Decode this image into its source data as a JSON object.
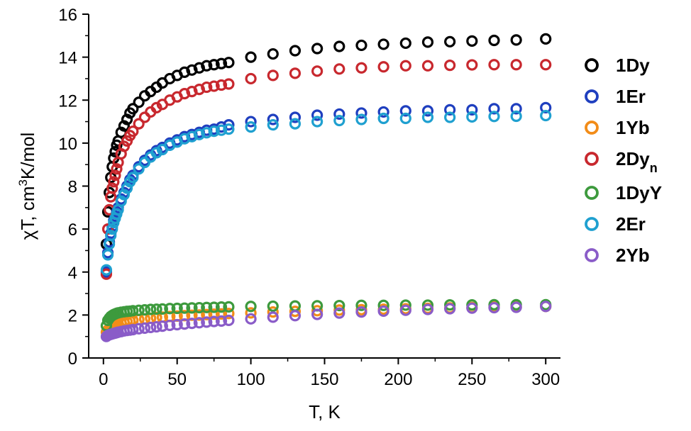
{
  "chart_data": {
    "type": "scatter",
    "xlabel": "T, K",
    "ylabel_parts": {
      "main": "χT, cm",
      "sup": "3",
      "rest": "K/mol"
    },
    "xlim": [
      -10,
      310
    ],
    "ylim": [
      0,
      16
    ],
    "x_ticks": [
      0,
      50,
      100,
      150,
      200,
      250,
      300
    ],
    "y_ticks": [
      0,
      2,
      4,
      6,
      8,
      10,
      12,
      14,
      16
    ],
    "x_tick_labels": [
      "0",
      "50",
      "100",
      "150",
      "200",
      "250",
      "300"
    ],
    "y_tick_labels": [
      "0",
      "2",
      "4",
      "6",
      "8",
      "10",
      "12",
      "14",
      "16"
    ],
    "legend_position": "right",
    "series": [
      {
        "name": "1Dy",
        "sub": "",
        "color": "#000000",
        "x": [
          2,
          3,
          4,
          5,
          6,
          7,
          8,
          9,
          10,
          12,
          14,
          16,
          18,
          20,
          24,
          28,
          32,
          36,
          40,
          45,
          50,
          55,
          60,
          65,
          70,
          75,
          80,
          85,
          100,
          115,
          130,
          145,
          160,
          175,
          190,
          205,
          220,
          235,
          250,
          265,
          280,
          300
        ],
        "y": [
          5.3,
          6.8,
          7.7,
          8.4,
          8.9,
          9.3,
          9.6,
          9.9,
          10.1,
          10.5,
          10.8,
          11.1,
          11.4,
          11.6,
          11.9,
          12.2,
          12.4,
          12.6,
          12.8,
          13.0,
          13.15,
          13.3,
          13.4,
          13.5,
          13.6,
          13.65,
          13.7,
          13.75,
          14.0,
          14.15,
          14.3,
          14.4,
          14.5,
          14.55,
          14.6,
          14.65,
          14.7,
          14.72,
          14.75,
          14.78,
          14.8,
          14.85
        ]
      },
      {
        "name": "1Er",
        "sub": "",
        "color": "#1f3fbf",
        "x": [
          2,
          3,
          4,
          5,
          6,
          7,
          8,
          9,
          10,
          12,
          14,
          16,
          18,
          20,
          24,
          28,
          32,
          36,
          40,
          45,
          50,
          55,
          60,
          65,
          70,
          75,
          80,
          85,
          100,
          115,
          130,
          145,
          160,
          175,
          190,
          205,
          220,
          235,
          250,
          265,
          280,
          300
        ],
        "y": [
          4.0,
          4.9,
          5.4,
          5.8,
          6.1,
          6.4,
          6.6,
          6.8,
          7.0,
          7.4,
          7.7,
          8.0,
          8.3,
          8.5,
          8.9,
          9.2,
          9.45,
          9.65,
          9.8,
          10.0,
          10.15,
          10.3,
          10.4,
          10.5,
          10.6,
          10.65,
          10.75,
          10.85,
          11.0,
          11.1,
          11.2,
          11.3,
          11.35,
          11.4,
          11.45,
          11.5,
          11.5,
          11.55,
          11.55,
          11.6,
          11.6,
          11.65
        ]
      },
      {
        "name": "1Yb",
        "sub": "",
        "color": "#f28c18",
        "x": [
          2,
          3,
          4,
          5,
          6,
          7,
          8,
          9,
          10,
          12,
          14,
          16,
          18,
          20,
          24,
          28,
          32,
          36,
          40,
          45,
          50,
          55,
          60,
          65,
          70,
          75,
          80,
          85,
          100,
          115,
          130,
          145,
          160,
          175,
          190,
          205,
          220,
          235,
          250,
          265,
          280,
          300
        ],
        "y": [
          1.2,
          1.3,
          1.35,
          1.4,
          1.45,
          1.5,
          1.52,
          1.55,
          1.58,
          1.62,
          1.66,
          1.69,
          1.72,
          1.75,
          1.79,
          1.82,
          1.85,
          1.88,
          1.9,
          1.93,
          1.95,
          1.97,
          1.99,
          2.0,
          2.02,
          2.04,
          2.05,
          2.07,
          2.1,
          2.14,
          2.17,
          2.2,
          2.23,
          2.25,
          2.27,
          2.29,
          2.31,
          2.33,
          2.35,
          2.37,
          2.38,
          2.4
        ]
      },
      {
        "name": "2Dy",
        "sub": "n",
        "color": "#c8282e",
        "x": [
          2,
          3,
          4,
          5,
          6,
          7,
          8,
          9,
          10,
          12,
          14,
          16,
          18,
          20,
          24,
          28,
          32,
          36,
          40,
          45,
          50,
          55,
          60,
          65,
          70,
          75,
          80,
          85,
          100,
          115,
          130,
          145,
          160,
          175,
          190,
          205,
          220,
          235,
          250,
          265,
          280,
          300
        ],
        "y": [
          3.9,
          6.0,
          6.9,
          7.5,
          7.9,
          8.2,
          8.5,
          8.8,
          9.1,
          9.5,
          9.85,
          10.1,
          10.35,
          10.55,
          10.9,
          11.2,
          11.45,
          11.65,
          11.8,
          12.0,
          12.15,
          12.3,
          12.4,
          12.5,
          12.6,
          12.65,
          12.7,
          12.75,
          13.0,
          13.15,
          13.25,
          13.35,
          13.45,
          13.5,
          13.55,
          13.6,
          13.6,
          13.62,
          13.64,
          13.65,
          13.65,
          13.65
        ]
      },
      {
        "name": "1DyY",
        "sub": "",
        "color": "#3d9a3d",
        "x": [
          2,
          3,
          4,
          5,
          6,
          7,
          8,
          9,
          10,
          12,
          14,
          16,
          18,
          20,
          24,
          28,
          32,
          36,
          40,
          45,
          50,
          55,
          60,
          65,
          70,
          75,
          80,
          85,
          100,
          115,
          130,
          145,
          160,
          175,
          190,
          205,
          220,
          235,
          250,
          265,
          280,
          300
        ],
        "y": [
          1.5,
          1.75,
          1.85,
          1.93,
          1.98,
          2.02,
          2.05,
          2.08,
          2.1,
          2.13,
          2.15,
          2.17,
          2.18,
          2.2,
          2.22,
          2.24,
          2.26,
          2.27,
          2.28,
          2.3,
          2.31,
          2.32,
          2.33,
          2.34,
          2.35,
          2.36,
          2.37,
          2.38,
          2.4,
          2.41,
          2.42,
          2.43,
          2.44,
          2.45,
          2.45,
          2.46,
          2.46,
          2.47,
          2.47,
          2.48,
          2.48,
          2.48
        ]
      },
      {
        "name": "2Er",
        "sub": "",
        "color": "#1fa0d0",
        "x": [
          2,
          3,
          4,
          5,
          6,
          7,
          8,
          9,
          10,
          12,
          14,
          16,
          18,
          20,
          24,
          28,
          32,
          36,
          40,
          45,
          50,
          55,
          60,
          65,
          70,
          75,
          80,
          85,
          100,
          115,
          130,
          145,
          160,
          175,
          190,
          205,
          220,
          235,
          250,
          265,
          280,
          300
        ],
        "y": [
          4.1,
          4.8,
          5.3,
          5.7,
          6.0,
          6.3,
          6.5,
          6.7,
          6.9,
          7.3,
          7.6,
          7.9,
          8.2,
          8.4,
          8.8,
          9.1,
          9.35,
          9.55,
          9.7,
          9.9,
          10.05,
          10.2,
          10.3,
          10.4,
          10.48,
          10.55,
          10.6,
          10.65,
          10.75,
          10.85,
          10.9,
          11.0,
          11.05,
          11.1,
          11.15,
          11.15,
          11.2,
          11.2,
          11.22,
          11.24,
          11.25,
          11.28
        ]
      },
      {
        "name": "2Yb",
        "sub": "",
        "color": "#8a5cc8",
        "x": [
          2,
          3,
          4,
          5,
          6,
          7,
          8,
          9,
          10,
          12,
          14,
          16,
          18,
          20,
          24,
          28,
          32,
          36,
          40,
          45,
          50,
          55,
          60,
          65,
          70,
          75,
          80,
          85,
          100,
          115,
          130,
          145,
          160,
          175,
          190,
          205,
          220,
          235,
          250,
          265,
          280,
          300
        ],
        "y": [
          1.0,
          1.05,
          1.08,
          1.1,
          1.12,
          1.14,
          1.16,
          1.18,
          1.2,
          1.23,
          1.26,
          1.28,
          1.3,
          1.32,
          1.36,
          1.39,
          1.42,
          1.45,
          1.48,
          1.52,
          1.55,
          1.58,
          1.61,
          1.64,
          1.67,
          1.7,
          1.72,
          1.75,
          1.82,
          1.9,
          1.97,
          2.03,
          2.09,
          2.14,
          2.18,
          2.22,
          2.26,
          2.29,
          2.32,
          2.34,
          2.36,
          2.4
        ]
      }
    ]
  }
}
